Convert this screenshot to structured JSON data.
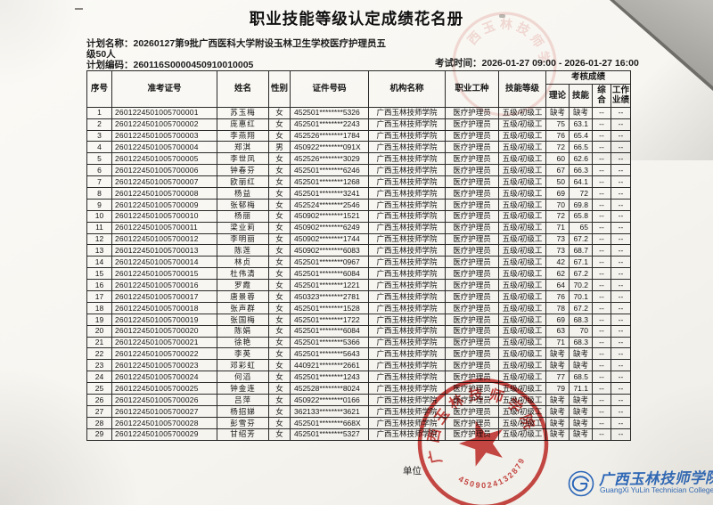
{
  "document": {
    "title": "职业技能等级认定成绩花名册",
    "plan_name_label": "计划名称：",
    "plan_name_line1": "20260127第9批广西医科大学附设玉林卫生学校医疗护理员五",
    "plan_name_line2": "级50人",
    "plan_code_label": "计划编码：",
    "plan_code": "260116S0000450910010005",
    "exam_time_label": "考试时间：",
    "exam_time": "2026-01-27 09:00 - 2026-01-27 16:00",
    "unit_label": "单位",
    "seal": {
      "org_text": "广西玉林技师学院",
      "serial_number": "4509024132879",
      "color": "#c3231f"
    },
    "footer_logo": {
      "name_cn": "广西玉林技师学院",
      "name_en": "GuangXi YuLin Technician College",
      "color": "#2a66b8"
    }
  },
  "table": {
    "score_group_header": "考核成绩",
    "col_headers": [
      "序号",
      "准考证号",
      "姓名",
      "性别",
      "证件号码",
      "机构名称",
      "职业工种",
      "技能等级"
    ],
    "score_headers": [
      "理论",
      "技能",
      "综合",
      "工作业绩"
    ],
    "row_keys": [
      "no",
      "ticket_no",
      "name",
      "gender",
      "id_number",
      "org_name",
      "occupation",
      "skill_level",
      "score_theory",
      "score_skill",
      "score_comprehensive",
      "score_work"
    ],
    "rows": [
      {
        "no": "1",
        "ticket_no": "2601224501005700001",
        "name": "苏玉梅",
        "gender": "女",
        "id_number": "452501********5326",
        "org_name": "广西玉林技师学院",
        "occupation": "医疗护理员",
        "skill_level": "五级/初级工",
        "score_theory": "缺考",
        "score_skill": "缺考",
        "score_comprehensive": "--",
        "score_work": "--"
      },
      {
        "no": "2",
        "ticket_no": "2601224501005700002",
        "name": "庞惠红",
        "gender": "女",
        "id_number": "452501********2243",
        "org_name": "广西玉林技师学院",
        "occupation": "医疗护理员",
        "skill_level": "五级/初级工",
        "score_theory": "75",
        "score_skill": "63.1",
        "score_comprehensive": "--",
        "score_work": "--"
      },
      {
        "no": "3",
        "ticket_no": "2601224501005700003",
        "name": "李燕翔",
        "gender": "女",
        "id_number": "452526********1784",
        "org_name": "广西玉林技师学院",
        "occupation": "医疗护理员",
        "skill_level": "五级/初级工",
        "score_theory": "76",
        "score_skill": "65.4",
        "score_comprehensive": "--",
        "score_work": "--"
      },
      {
        "no": "4",
        "ticket_no": "2601224501005700004",
        "name": "郑淇",
        "gender": "男",
        "id_number": "450922********091X",
        "org_name": "广西玉林技师学院",
        "occupation": "医疗护理员",
        "skill_level": "五级/初级工",
        "score_theory": "72",
        "score_skill": "66.5",
        "score_comprehensive": "--",
        "score_work": "--"
      },
      {
        "no": "5",
        "ticket_no": "2601224501005700005",
        "name": "李世凤",
        "gender": "女",
        "id_number": "452526********3029",
        "org_name": "广西玉林技师学院",
        "occupation": "医疗护理员",
        "skill_level": "五级/初级工",
        "score_theory": "60",
        "score_skill": "62.6",
        "score_comprehensive": "--",
        "score_work": "--"
      },
      {
        "no": "6",
        "ticket_no": "2601224501005700006",
        "name": "钟春芬",
        "gender": "女",
        "id_number": "452501********6246",
        "org_name": "广西玉林技师学院",
        "occupation": "医疗护理员",
        "skill_level": "五级/初级工",
        "score_theory": "67",
        "score_skill": "66.3",
        "score_comprehensive": "--",
        "score_work": "--"
      },
      {
        "no": "7",
        "ticket_no": "2601224501005700007",
        "name": "欧丽红",
        "gender": "女",
        "id_number": "452501********1268",
        "org_name": "广西玉林技师学院",
        "occupation": "医疗护理员",
        "skill_level": "五级/初级工",
        "score_theory": "50",
        "score_skill": "64.1",
        "score_comprehensive": "--",
        "score_work": "--"
      },
      {
        "no": "8",
        "ticket_no": "2601224501005700008",
        "name": "杨益",
        "gender": "女",
        "id_number": "452501********3241",
        "org_name": "广西玉林技师学院",
        "occupation": "医疗护理员",
        "skill_level": "五级/初级工",
        "score_theory": "69",
        "score_skill": "72",
        "score_comprehensive": "--",
        "score_work": "--"
      },
      {
        "no": "9",
        "ticket_no": "2601224501005700009",
        "name": "张郁梅",
        "gender": "女",
        "id_number": "452524********2546",
        "org_name": "广西玉林技师学院",
        "occupation": "医疗护理员",
        "skill_level": "五级/初级工",
        "score_theory": "70",
        "score_skill": "69.8",
        "score_comprehensive": "--",
        "score_work": "--"
      },
      {
        "no": "10",
        "ticket_no": "2601224501005700010",
        "name": "杨丽",
        "gender": "女",
        "id_number": "450902********1521",
        "org_name": "广西玉林技师学院",
        "occupation": "医疗护理员",
        "skill_level": "五级/初级工",
        "score_theory": "72",
        "score_skill": "65.8",
        "score_comprehensive": "--",
        "score_work": "--"
      },
      {
        "no": "11",
        "ticket_no": "2601224501005700011",
        "name": "梁业莉",
        "gender": "女",
        "id_number": "450902********6249",
        "org_name": "广西玉林技师学院",
        "occupation": "医疗护理员",
        "skill_level": "五级/初级工",
        "score_theory": "71",
        "score_skill": "65",
        "score_comprehensive": "--",
        "score_work": "--"
      },
      {
        "no": "12",
        "ticket_no": "2601224501005700012",
        "name": "李明丽",
        "gender": "女",
        "id_number": "450902********1744",
        "org_name": "广西玉林技师学院",
        "occupation": "医疗护理员",
        "skill_level": "五级/初级工",
        "score_theory": "73",
        "score_skill": "67.2",
        "score_comprehensive": "--",
        "score_work": "--"
      },
      {
        "no": "13",
        "ticket_no": "2601224501005700013",
        "name": "陈莲",
        "gender": "女",
        "id_number": "450902********6083",
        "org_name": "广西玉林技师学院",
        "occupation": "医疗护理员",
        "skill_level": "五级/初级工",
        "score_theory": "73",
        "score_skill": "68.7",
        "score_comprehensive": "--",
        "score_work": "--"
      },
      {
        "no": "14",
        "ticket_no": "2601224501005700014",
        "name": "林贞",
        "gender": "女",
        "id_number": "452501********0967",
        "org_name": "广西玉林技师学院",
        "occupation": "医疗护理员",
        "skill_level": "五级/初级工",
        "score_theory": "42",
        "score_skill": "67.1",
        "score_comprehensive": "--",
        "score_work": "--"
      },
      {
        "no": "15",
        "ticket_no": "2601224501005700015",
        "name": "杜伟清",
        "gender": "女",
        "id_number": "452501********6084",
        "org_name": "广西玉林技师学院",
        "occupation": "医疗护理员",
        "skill_level": "五级/初级工",
        "score_theory": "62",
        "score_skill": "67.2",
        "score_comprehensive": "--",
        "score_work": "--"
      },
      {
        "no": "16",
        "ticket_no": "2601224501005700016",
        "name": "罗霞",
        "gender": "女",
        "id_number": "452501********1221",
        "org_name": "广西玉林技师学院",
        "occupation": "医疗护理员",
        "skill_level": "五级/初级工",
        "score_theory": "64",
        "score_skill": "70.2",
        "score_comprehensive": "--",
        "score_work": "--"
      },
      {
        "no": "17",
        "ticket_no": "2601224501005700017",
        "name": "唐景蓉",
        "gender": "女",
        "id_number": "450323********2781",
        "org_name": "广西玉林技师学院",
        "occupation": "医疗护理员",
        "skill_level": "五级/初级工",
        "score_theory": "76",
        "score_skill": "70.1",
        "score_comprehensive": "--",
        "score_work": "--"
      },
      {
        "no": "18",
        "ticket_no": "2601224501005700018",
        "name": "张声群",
        "gender": "女",
        "id_number": "452501********1528",
        "org_name": "广西玉林技师学院",
        "occupation": "医疗护理员",
        "skill_level": "五级/初级工",
        "score_theory": "78",
        "score_skill": "67.2",
        "score_comprehensive": "--",
        "score_work": "--"
      },
      {
        "no": "19",
        "ticket_no": "2601224501005700019",
        "name": "张国梅",
        "gender": "女",
        "id_number": "452501********1722",
        "org_name": "广西玉林技师学院",
        "occupation": "医疗护理员",
        "skill_level": "五级/初级工",
        "score_theory": "69",
        "score_skill": "68.3",
        "score_comprehensive": "--",
        "score_work": "--"
      },
      {
        "no": "20",
        "ticket_no": "2601224501005700020",
        "name": "陈娟",
        "gender": "女",
        "id_number": "452501********6084",
        "org_name": "广西玉林技师学院",
        "occupation": "医疗护理员",
        "skill_level": "五级/初级工",
        "score_theory": "63",
        "score_skill": "70",
        "score_comprehensive": "--",
        "score_work": "--"
      },
      {
        "no": "21",
        "ticket_no": "2601224501005700021",
        "name": "徐艳",
        "gender": "女",
        "id_number": "452501********5366",
        "org_name": "广西玉林技师学院",
        "occupation": "医疗护理员",
        "skill_level": "五级/初级工",
        "score_theory": "71",
        "score_skill": "68.3",
        "score_comprehensive": "--",
        "score_work": "--"
      },
      {
        "no": "22",
        "ticket_no": "2601224501005700022",
        "name": "李英",
        "gender": "女",
        "id_number": "452501********5643",
        "org_name": "广西玉林技师学院",
        "occupation": "医疗护理员",
        "skill_level": "五级/初级工",
        "score_theory": "缺考",
        "score_skill": "缺考",
        "score_comprehensive": "--",
        "score_work": "--"
      },
      {
        "no": "23",
        "ticket_no": "2601224501005700023",
        "name": "邓彩虹",
        "gender": "女",
        "id_number": "440921********2661",
        "org_name": "广西玉林技师学院",
        "occupation": "医疗护理员",
        "skill_level": "五级/初级工",
        "score_theory": "缺考",
        "score_skill": "缺考",
        "score_comprehensive": "--",
        "score_work": "--"
      },
      {
        "no": "24",
        "ticket_no": "2601224501005700024",
        "name": "何滔",
        "gender": "女",
        "id_number": "452501********1243",
        "org_name": "广西玉林技师学院",
        "occupation": "医疗护理员",
        "skill_level": "五级/初级工",
        "score_theory": "77",
        "score_skill": "68.5",
        "score_comprehensive": "--",
        "score_work": "--"
      },
      {
        "no": "25",
        "ticket_no": "2601224501005700025",
        "name": "钟金连",
        "gender": "女",
        "id_number": "452528********8024",
        "org_name": "广西玉林技师学院",
        "occupation": "医疗护理员",
        "skill_level": "五级/初级工",
        "score_theory": "79",
        "score_skill": "71.1",
        "score_comprehensive": "--",
        "score_work": "--"
      },
      {
        "no": "26",
        "ticket_no": "2601224501005700026",
        "name": "吕萍",
        "gender": "女",
        "id_number": "450922********0166",
        "org_name": "广西玉林技师学院",
        "occupation": "医疗护理员",
        "skill_level": "五级/初级工",
        "score_theory": "缺考",
        "score_skill": "缺考",
        "score_comprehensive": "--",
        "score_work": "--"
      },
      {
        "no": "27",
        "ticket_no": "2601224501005700027",
        "name": "杨招娣",
        "gender": "女",
        "id_number": "362133********3621",
        "org_name": "广西玉林技师学院",
        "occupation": "医疗护理员",
        "skill_level": "五级/初级工",
        "score_theory": "缺考",
        "score_skill": "缺考",
        "score_comprehensive": "--",
        "score_work": "--"
      },
      {
        "no": "28",
        "ticket_no": "2601224501005700028",
        "name": "彭雪芬",
        "gender": "女",
        "id_number": "452501********668X",
        "org_name": "广西玉林技师学院",
        "occupation": "医疗护理员",
        "skill_level": "五级/初级工",
        "score_theory": "缺考",
        "score_skill": "缺考",
        "score_comprehensive": "--",
        "score_work": "--"
      },
      {
        "no": "29",
        "ticket_no": "2601224501005700029",
        "name": "甘绍芳",
        "gender": "女",
        "id_number": "452501********5327",
        "org_name": "广西玉林技师学院",
        "occupation": "医疗护理员",
        "skill_level": "五级/初级工",
        "score_theory": "缺考",
        "score_skill": "缺考",
        "score_comprehensive": "--",
        "score_work": "--"
      }
    ]
  }
}
